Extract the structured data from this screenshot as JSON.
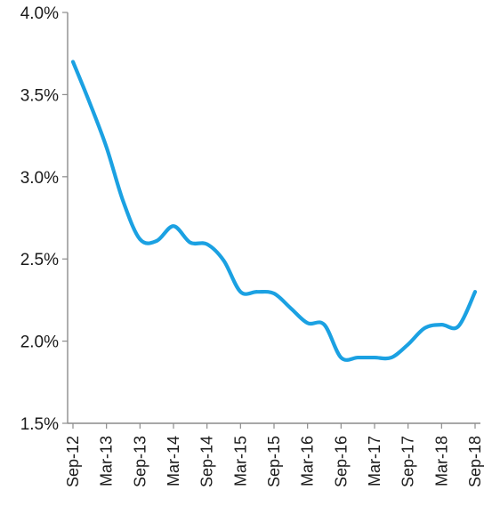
{
  "chart_data": {
    "type": "line",
    "title": "",
    "xlabel": "",
    "ylabel": "",
    "x_ticks": [
      "Sep-12",
      "Mar-13",
      "Sep-13",
      "Mar-14",
      "Sep-14",
      "Mar-15",
      "Sep-15",
      "Mar-16",
      "Sep-16",
      "Mar-17",
      "Sep-17",
      "Mar-18",
      "Sep-18"
    ],
    "y_ticks": [
      "1.5%",
      "2.0%",
      "2.5%",
      "3.0%",
      "3.5%",
      "4.0%"
    ],
    "y_tick_values": [
      1.5,
      2.0,
      2.5,
      3.0,
      3.5,
      4.0
    ],
    "ylim": [
      1.5,
      4.0
    ],
    "grid": false,
    "legend": "none",
    "series": [
      {
        "color": "#1ba1e2",
        "x": [
          "Sep-12",
          "Dec-12",
          "Mar-13",
          "Jun-13",
          "Sep-13",
          "Dec-13",
          "Mar-14",
          "Jun-14",
          "Sep-14",
          "Dec-14",
          "Mar-15",
          "Jun-15",
          "Sep-15",
          "Dec-15",
          "Mar-16",
          "Jun-16",
          "Sep-16",
          "Dec-16",
          "Mar-17",
          "Jun-17",
          "Sep-17",
          "Dec-17",
          "Mar-18",
          "Jun-18",
          "Sep-18"
        ],
        "values": [
          3.7,
          3.45,
          3.18,
          2.85,
          2.62,
          2.61,
          2.7,
          2.6,
          2.59,
          2.49,
          2.3,
          2.3,
          2.29,
          2.2,
          2.11,
          2.1,
          1.9,
          1.9,
          1.9,
          1.9,
          1.98,
          2.08,
          2.1,
          2.09,
          2.3
        ]
      }
    ]
  }
}
